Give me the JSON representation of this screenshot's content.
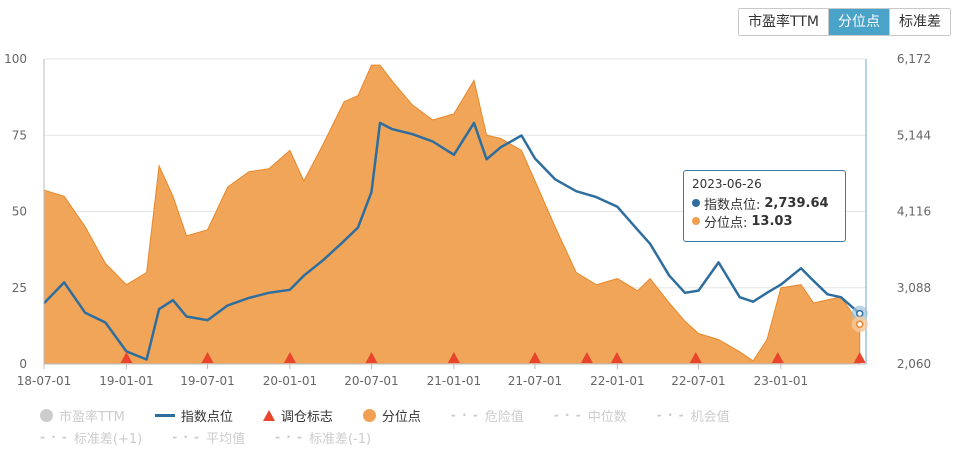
{
  "buttons": {
    "pe_ttm": "市盈率TTM",
    "percentile": "分位点",
    "stddev": "标准差"
  },
  "legend": {
    "pe_ttm": "市盈率TTM",
    "index_points": "指数点位",
    "rebalance": "调仓标志",
    "percentile": "分位点",
    "danger": "危险值",
    "median": "中位数",
    "opportunity": "机会值",
    "std_plus1": "标准差(+1)",
    "mean": "平均值",
    "std_minus1": "标准差(-1)"
  },
  "tooltip": {
    "date": "2023-06-26",
    "index_label": "指数点位:",
    "index_value": "2,739.64",
    "pct_label": "分位点:",
    "pct_value": "13.03"
  },
  "colors": {
    "index_line": "#2e6e9e",
    "percentile_fill": "#f0a050",
    "percentile_stroke": "#e8872a",
    "rebalance": "#e8452c",
    "active_button": "#4aa3c8"
  },
  "chart_data": {
    "type": "area",
    "x_ticks": [
      "18-07-01",
      "19-01-01",
      "19-07-01",
      "20-01-01",
      "20-07-01",
      "21-01-01",
      "21-07-01",
      "22-01-01",
      "22-07-01",
      "23-01-01"
    ],
    "y_left_ticks": [
      "0",
      "25",
      "50",
      "75",
      "100"
    ],
    "y_right_ticks": [
      "2,060",
      "3,088",
      "4,116",
      "5,144",
      "6,172"
    ],
    "ylim_left": [
      0,
      100
    ],
    "ylim_right": [
      2060,
      6172
    ],
    "xlim": [
      "2018-07-01",
      "2023-07-10"
    ],
    "series": [
      {
        "name": "分位点",
        "axis": "left",
        "x": [
          "2018-07-01",
          "2018-08-15",
          "2018-10-01",
          "2018-11-15",
          "2019-01-01",
          "2019-02-15",
          "2019-03-15",
          "2019-04-15",
          "2019-05-15",
          "2019-07-01",
          "2019-08-15",
          "2019-10-01",
          "2019-11-15",
          "2020-01-01",
          "2020-02-01",
          "2020-03-15",
          "2020-05-01",
          "2020-06-01",
          "2020-07-01",
          "2020-07-20",
          "2020-08-15",
          "2020-09-30",
          "2020-11-15",
          "2021-01-01",
          "2021-02-15",
          "2021-03-15",
          "2021-04-15",
          "2021-06-01",
          "2021-07-01",
          "2021-08-15",
          "2021-10-01",
          "2021-11-15",
          "2022-01-01",
          "2022-02-15",
          "2022-03-15",
          "2022-04-27",
          "2022-06-01",
          "2022-07-01",
          "2022-08-15",
          "2022-10-01",
          "2022-10-31",
          "2022-12-01",
          "2023-01-01",
          "2023-02-15",
          "2023-03-15",
          "2023-04-15",
          "2023-05-15",
          "2023-06-26"
        ],
        "values": [
          57,
          55,
          45,
          33,
          26,
          30,
          65,
          55,
          42,
          44,
          58,
          63,
          64,
          70,
          60,
          72,
          86,
          88,
          98,
          98,
          93,
          85,
          80,
          82,
          93,
          75,
          74,
          70,
          60,
          45,
          30,
          26,
          28,
          24,
          28,
          20,
          14,
          10,
          8,
          4,
          1,
          8,
          25,
          26,
          20,
          21,
          22,
          13.03
        ]
      },
      {
        "name": "指数点位",
        "axis": "right",
        "x": [
          "2018-07-01",
          "2018-08-15",
          "2018-10-01",
          "2018-11-15",
          "2019-01-01",
          "2019-02-15",
          "2019-03-15",
          "2019-04-15",
          "2019-05-15",
          "2019-07-01",
          "2019-08-15",
          "2019-10-01",
          "2019-11-15",
          "2020-01-01",
          "2020-02-01",
          "2020-03-15",
          "2020-05-01",
          "2020-06-01",
          "2020-07-01",
          "2020-07-20",
          "2020-08-15",
          "2020-09-30",
          "2020-11-15",
          "2021-01-01",
          "2021-02-15",
          "2021-03-15",
          "2021-04-15",
          "2021-06-01",
          "2021-07-01",
          "2021-08-15",
          "2021-10-01",
          "2021-11-15",
          "2022-01-01",
          "2022-02-15",
          "2022-03-15",
          "2022-04-27",
          "2022-06-01",
          "2022-07-01",
          "2022-08-15",
          "2022-10-01",
          "2022-10-31",
          "2022-12-01",
          "2023-01-01",
          "2023-02-15",
          "2023-03-15",
          "2023-04-15",
          "2023-05-15",
          "2023-06-26"
        ],
        "values": [
          2880,
          3160,
          2750,
          2620,
          2230,
          2120,
          2800,
          2920,
          2700,
          2650,
          2850,
          2950,
          3020,
          3060,
          3250,
          3460,
          3720,
          3900,
          4380,
          5310,
          5230,
          5160,
          5060,
          4880,
          5310,
          4820,
          4980,
          5140,
          4830,
          4550,
          4390,
          4310,
          4180,
          3870,
          3680,
          3250,
          3020,
          3050,
          3430,
          2960,
          2900,
          3020,
          3130,
          3350,
          3180,
          3000,
          2960,
          2739.64
        ]
      }
    ],
    "rebalance_markers": [
      "2019-01-01",
      "2019-07-01",
      "2020-01-01",
      "2020-07-01",
      "2021-01-01",
      "2021-07-01",
      "2021-10-25",
      "2021-12-31",
      "2022-06-25",
      "2022-12-25",
      "2023-06-26"
    ]
  }
}
